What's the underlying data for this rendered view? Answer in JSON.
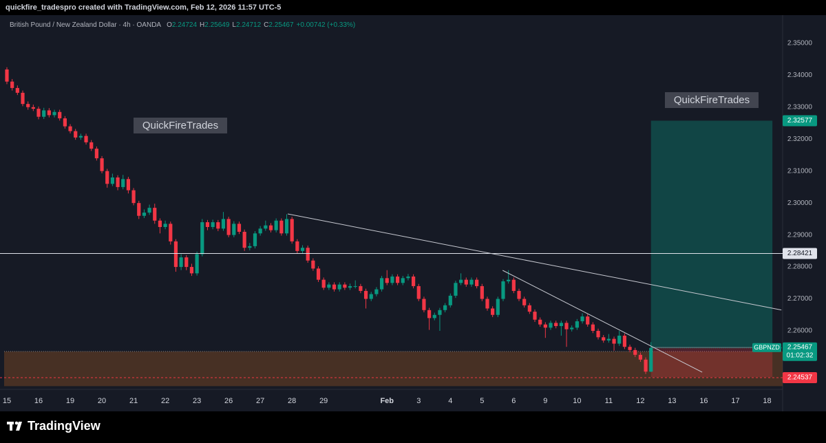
{
  "header": {
    "author_line": "quickfire_tradespro created with TradingView.com, Feb 12, 2026 11:57 UTC-5",
    "symbol": "British Pound / New Zealand Dollar · 4h · OANDA",
    "o_label": "O",
    "h_label": "H",
    "l_label": "L",
    "c_label": "C",
    "change": "+0.00742 (+0.33%)"
  },
  "chart_data": {
    "type": "candlestick",
    "categories": [
      "15",
      null,
      null,
      null,
      null,
      null,
      "16",
      null,
      null,
      null,
      null,
      null,
      "19",
      null,
      null,
      null,
      null,
      null,
      "20",
      null,
      null,
      null,
      null,
      null,
      "21",
      null,
      null,
      null,
      null,
      null,
      "22",
      null,
      null,
      null,
      null,
      null,
      "23",
      null,
      null,
      null,
      null,
      null,
      "26",
      null,
      null,
      null,
      null,
      null,
      "27",
      null,
      null,
      null,
      null,
      null,
      "28",
      null,
      null,
      null,
      null,
      null,
      "29",
      null,
      null,
      null,
      null,
      null,
      null,
      null,
      null,
      null,
      null,
      null,
      "Feb",
      null,
      null,
      null,
      null,
      null,
      "3",
      null,
      null,
      null,
      null,
      null,
      "4",
      null,
      null,
      null,
      null,
      null,
      "5",
      null,
      null,
      null,
      null,
      null,
      "6",
      null,
      null,
      null,
      null,
      null,
      "9",
      null,
      null,
      null,
      null,
      null,
      "10",
      null,
      null,
      null,
      null,
      null,
      "11",
      null,
      null,
      null,
      null,
      null,
      "12",
      null,
      null,
      null,
      null,
      null,
      "13",
      null,
      null,
      null,
      null,
      null,
      "16",
      null,
      null,
      null,
      null,
      null,
      "17",
      null,
      null,
      null,
      null,
      null,
      "18",
      null,
      null,
      null
    ],
    "ohlc": [
      [
        2.3418,
        2.3425,
        2.3372,
        2.338
      ],
      [
        2.338,
        2.3388,
        2.3352,
        2.336
      ],
      [
        2.336,
        2.3368,
        2.3338,
        2.3345
      ],
      [
        2.3345,
        2.3352,
        2.3303,
        2.331
      ],
      [
        2.331,
        2.3318,
        2.3292,
        2.33
      ],
      [
        2.33,
        2.3308,
        2.3288,
        2.3295
      ],
      [
        2.3295,
        2.3302,
        2.3262,
        2.327
      ],
      [
        2.327,
        2.3298,
        2.3263,
        2.329
      ],
      [
        2.329,
        2.3297,
        2.3268,
        2.3275
      ],
      [
        2.3275,
        2.3292,
        2.3268,
        2.3285
      ],
      [
        2.3285,
        2.3292,
        2.3258,
        2.3265
      ],
      [
        2.3265,
        2.3272,
        2.3233,
        2.324
      ],
      [
        2.324,
        2.3247,
        2.3218,
        2.3225
      ],
      [
        2.3225,
        2.3232,
        2.3198,
        2.3205
      ],
      [
        2.3205,
        2.3217,
        2.3198,
        2.321
      ],
      [
        2.321,
        2.3217,
        2.3183,
        2.319
      ],
      [
        2.319,
        2.3197,
        2.3163,
        2.317
      ],
      [
        2.317,
        2.3177,
        2.3133,
        2.314
      ],
      [
        2.314,
        2.3147,
        2.3093,
        2.31
      ],
      [
        2.31,
        2.3107,
        2.3048,
        2.306
      ],
      [
        2.306,
        2.3092,
        2.3053,
        2.308
      ],
      [
        2.308,
        2.3087,
        2.304,
        2.305
      ],
      [
        2.305,
        2.3088,
        2.3043,
        2.3075
      ],
      [
        2.3075,
        2.3082,
        2.303,
        2.304
      ],
      [
        2.304,
        2.3047,
        2.2993,
        2.3
      ],
      [
        2.3,
        2.3007,
        2.295,
        2.296
      ],
      [
        2.296,
        2.298,
        2.2953,
        2.297
      ],
      [
        2.297,
        2.2995,
        2.2963,
        2.2985
      ],
      [
        2.2985,
        2.2998,
        2.2935,
        2.2945
      ],
      [
        2.2945,
        2.2952,
        2.2905,
        2.2925
      ],
      [
        2.2925,
        2.2945,
        2.2918,
        2.2935
      ],
      [
        2.2935,
        2.2942,
        2.287,
        2.288
      ],
      [
        2.288,
        2.2887,
        2.2785,
        2.28
      ],
      [
        2.28,
        2.284,
        2.279,
        2.283
      ],
      [
        2.283,
        2.2837,
        2.279,
        2.28
      ],
      [
        2.28,
        2.281,
        2.2772,
        2.278
      ],
      [
        2.278,
        2.2848,
        2.2773,
        2.284
      ],
      [
        2.284,
        2.295,
        2.2833,
        2.294
      ],
      [
        2.294,
        2.2947,
        2.2915,
        2.2925
      ],
      [
        2.2925,
        2.2948,
        2.2918,
        2.294
      ],
      [
        2.294,
        2.2947,
        2.2912,
        2.292
      ],
      [
        2.292,
        2.2972,
        2.2913,
        2.295
      ],
      [
        2.295,
        2.2957,
        2.2893,
        2.29
      ],
      [
        2.29,
        2.2943,
        2.2893,
        2.2935
      ],
      [
        2.2935,
        2.2942,
        2.2903,
        2.291
      ],
      [
        2.291,
        2.2917,
        2.285,
        2.286
      ],
      [
        2.286,
        2.2875,
        2.2852,
        2.2865
      ],
      [
        2.2865,
        2.2912,
        2.2858,
        2.2905
      ],
      [
        2.2905,
        2.2928,
        2.2898,
        2.292
      ],
      [
        2.292,
        2.2945,
        2.2913,
        2.293
      ],
      [
        2.293,
        2.2937,
        2.2908,
        2.2915
      ],
      [
        2.2915,
        2.2952,
        2.2908,
        2.2945
      ],
      [
        2.2945,
        2.2952,
        2.2898,
        2.2905
      ],
      [
        2.2905,
        2.2965,
        2.2898,
        2.295
      ],
      [
        2.295,
        2.2957,
        2.2873,
        2.288
      ],
      [
        2.288,
        2.2887,
        2.2843,
        2.285
      ],
      [
        2.285,
        2.2868,
        2.2843,
        2.286
      ],
      [
        2.286,
        2.2867,
        2.2813,
        2.282
      ],
      [
        2.282,
        2.2827,
        2.2788,
        2.2795
      ],
      [
        2.2795,
        2.2802,
        2.2753,
        2.276
      ],
      [
        2.276,
        2.2767,
        2.2728,
        2.2735
      ],
      [
        2.2735,
        2.2752,
        2.2728,
        2.2745
      ],
      [
        2.2745,
        2.2752,
        2.2723,
        2.273
      ],
      [
        2.273,
        2.2752,
        2.2723,
        2.2745
      ],
      [
        2.2745,
        2.2752,
        2.2728,
        2.2735
      ],
      [
        2.2735,
        2.2748,
        2.2728,
        2.274
      ],
      [
        2.274,
        2.2758,
        2.2733,
        2.274
      ],
      [
        2.274,
        2.2747,
        2.2718,
        2.2725
      ],
      [
        2.2725,
        2.2732,
        2.267,
        2.27
      ],
      [
        2.27,
        2.2722,
        2.2693,
        2.2715
      ],
      [
        2.2715,
        2.2737,
        2.2708,
        2.273
      ],
      [
        2.273,
        2.2772,
        2.2723,
        2.2765
      ],
      [
        2.2765,
        2.279,
        2.2743,
        2.275
      ],
      [
        2.275,
        2.2777,
        2.2743,
        2.277
      ],
      [
        2.277,
        2.2777,
        2.2743,
        2.275
      ],
      [
        2.275,
        2.2772,
        2.2743,
        2.2765
      ],
      [
        2.2765,
        2.2778,
        2.2758,
        2.277
      ],
      [
        2.277,
        2.2777,
        2.2733,
        2.274
      ],
      [
        2.274,
        2.2747,
        2.2693,
        2.27
      ],
      [
        2.27,
        2.2707,
        2.2658,
        2.2665
      ],
      [
        2.2665,
        2.2672,
        2.2603,
        2.264
      ],
      [
        2.264,
        2.2657,
        2.2633,
        2.265
      ],
      [
        2.265,
        2.2672,
        2.26,
        2.2665
      ],
      [
        2.2665,
        2.2687,
        2.2658,
        2.268
      ],
      [
        2.268,
        2.2717,
        2.2673,
        2.271
      ],
      [
        2.271,
        2.2757,
        2.2703,
        2.275
      ],
      [
        2.275,
        2.278,
        2.2743,
        2.276
      ],
      [
        2.276,
        2.2767,
        2.2738,
        2.2745
      ],
      [
        2.2745,
        2.2767,
        2.2738,
        2.276
      ],
      [
        2.276,
        2.2767,
        2.2733,
        2.274
      ],
      [
        2.274,
        2.2747,
        2.2693,
        2.27
      ],
      [
        2.27,
        2.2707,
        2.2663,
        2.267
      ],
      [
        2.267,
        2.2677,
        2.2643,
        2.265
      ],
      [
        2.265,
        2.2707,
        2.2643,
        2.27
      ],
      [
        2.27,
        2.2762,
        2.2693,
        2.2755
      ],
      [
        2.2755,
        2.279,
        2.2748,
        2.276
      ],
      [
        2.276,
        2.2767,
        2.2718,
        2.2725
      ],
      [
        2.2725,
        2.2732,
        2.2693,
        2.27
      ],
      [
        2.27,
        2.2707,
        2.2673,
        2.268
      ],
      [
        2.268,
        2.2687,
        2.2653,
        2.266
      ],
      [
        2.266,
        2.2667,
        2.2628,
        2.2635
      ],
      [
        2.2635,
        2.2642,
        2.2613,
        2.262
      ],
      [
        2.262,
        2.2627,
        2.2578,
        2.261
      ],
      [
        2.261,
        2.2632,
        2.2603,
        2.2625
      ],
      [
        2.2625,
        2.2632,
        2.2608,
        2.2615
      ],
      [
        2.2615,
        2.2632,
        2.2585,
        2.2625
      ],
      [
        2.2625,
        2.2632,
        2.255,
        2.2605
      ],
      [
        2.2605,
        2.2617,
        2.2598,
        2.261
      ],
      [
        2.261,
        2.2637,
        2.2603,
        2.263
      ],
      [
        2.263,
        2.2655,
        2.2623,
        2.2645
      ],
      [
        2.2645,
        2.2652,
        2.2613,
        2.262
      ],
      [
        2.262,
        2.2627,
        2.2593,
        2.26
      ],
      [
        2.26,
        2.2607,
        2.2573,
        2.258
      ],
      [
        2.258,
        2.2587,
        2.2563,
        2.257
      ],
      [
        2.257,
        2.259,
        2.2563,
        2.2575
      ],
      [
        2.2575,
        2.2582,
        2.2538,
        2.256
      ],
      [
        2.256,
        2.26,
        2.2553,
        2.2585
      ],
      [
        2.2585,
        2.2592,
        2.2543,
        2.255
      ],
      [
        2.255,
        2.2557,
        2.2533,
        2.254
      ],
      [
        2.254,
        2.2547,
        2.2518,
        2.2525
      ],
      [
        2.2525,
        2.2532,
        2.2503,
        2.251
      ],
      [
        2.251,
        2.2517,
        2.2465,
        2.24724
      ],
      [
        2.24724,
        2.25649,
        2.24712,
        2.25467
      ],
      null,
      null,
      null,
      null,
      null,
      null,
      null,
      null,
      null,
      null,
      null,
      null,
      null,
      null,
      null,
      null,
      null,
      null,
      null,
      null,
      null,
      null,
      null,
      null,
      null
    ],
    "ylim": [
      2.2417,
      2.3588
    ],
    "yticks": [
      {
        "value": 2.26,
        "label": "2.26000"
      },
      {
        "value": 2.27,
        "label": "2.27000"
      },
      {
        "value": 2.28,
        "label": "2.28000"
      },
      {
        "value": 2.29,
        "label": "2.29000"
      },
      {
        "value": 2.3,
        "label": "2.30000"
      },
      {
        "value": 2.31,
        "label": "2.31000"
      },
      {
        "value": 2.32,
        "label": "2.32000"
      },
      {
        "value": 2.33,
        "label": "2.33000"
      },
      {
        "value": 2.34,
        "label": "2.34000"
      },
      {
        "value": 2.35,
        "label": "2.35000"
      }
    ],
    "grid": false,
    "up_color": "#089981",
    "down_color": "#f23645",
    "horizontal_line": 2.28421,
    "trendlines": [
      {
        "x": [
          53.2,
          146.7
        ],
        "y": [
          2.2966,
          2.26654
        ]
      },
      {
        "x": [
          93.9,
          131.7
        ],
        "y": [
          2.27894,
          2.24707
        ]
      }
    ],
    "position": {
      "x": [
        122,
        145
      ],
      "target": 2.32577,
      "entry": 2.2548,
      "stop": 2.2455
    },
    "zone": [
      2.2427,
      2.25356
    ],
    "bid_line": 2.24537,
    "annotations": [
      "QuickFireTrades",
      "QuickFireTrades"
    ],
    "symbol_tag": "GBPNZD",
    "countdown": "01:02:32"
  },
  "footer": {
    "logo": "TradingView"
  }
}
